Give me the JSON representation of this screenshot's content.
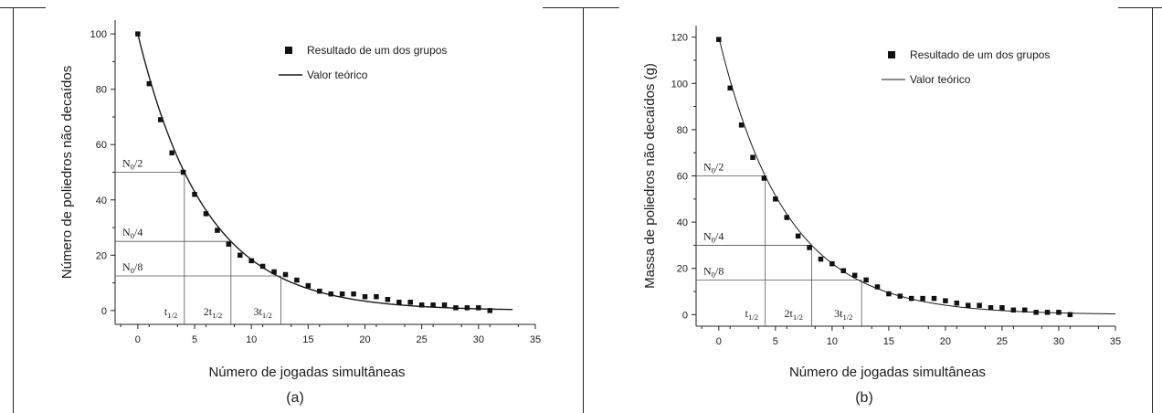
{
  "colors": {
    "ink": "#1a1a1a",
    "axis": "#222222",
    "marker": "#111111",
    "guide": "#555555"
  },
  "panels": [
    {
      "caption": "(a)"
    },
    {
      "caption": "(b)"
    }
  ],
  "chart_data": [
    {
      "type": "scatter",
      "title": "",
      "xlabel": "Número de jogadas simultâneas",
      "ylabel": "Número de poliedros não decaídos",
      "xlim": [
        -2,
        35
      ],
      "ylim": [
        -5,
        105
      ],
      "xticks": [
        "0",
        "5",
        "10",
        "15",
        "20",
        "25",
        "30",
        "35"
      ],
      "yticks": [
        "0",
        "20",
        "40",
        "60",
        "80",
        "100"
      ],
      "legend": {
        "position": "top-right",
        "scatter_label": "Resultado de um dos grupos",
        "line_label": "Valor teórico"
      },
      "series": [
        {
          "name": "Resultado de um dos grupos",
          "x": [
            0,
            1,
            2,
            3,
            4,
            5,
            6,
            7,
            8,
            9,
            10,
            11,
            12,
            13,
            14,
            15,
            16,
            17,
            18,
            19,
            20,
            21,
            22,
            23,
            24,
            25,
            26,
            27,
            28,
            29,
            30,
            31
          ],
          "y": [
            100,
            82,
            69,
            57,
            50,
            42,
            35,
            29,
            24,
            20,
            18,
            16,
            14,
            13,
            11,
            9,
            7,
            6,
            6,
            6,
            5,
            5,
            4,
            3,
            3,
            2,
            2,
            2,
            1,
            1,
            1,
            0
          ]
        },
        {
          "name": "Valor teórico",
          "curve": "exponential",
          "y0": 100,
          "half_life": 4.1,
          "x_range": [
            0,
            33
          ]
        }
      ],
      "guides": [
        {
          "label_main": "N",
          "label_sub": "0",
          "label_tail": "/2",
          "y": 50,
          "x_end": 4.1
        },
        {
          "label_main": "N",
          "label_sub": "0",
          "label_tail": "/4",
          "y": 25,
          "x_end": 8.2
        },
        {
          "label_main": "N",
          "label_sub": "0",
          "label_tail": "/8",
          "y": 12.5,
          "x_end": 12.6
        }
      ],
      "vlines": [
        {
          "label_main": "t",
          "label_sub": "1/2",
          "x": 4.1,
          "y_top": 50
        },
        {
          "label_main": "2t",
          "label_sub": "1/2",
          "x": 8.2,
          "y_top": 25
        },
        {
          "label_main": "3t",
          "label_sub": "1/2",
          "x": 12.6,
          "y_top": 12.5
        }
      ]
    },
    {
      "type": "scatter",
      "title": "",
      "xlabel": "Número de jogadas simultâneas",
      "ylabel": "Massa de poliedros não decaídos (g)",
      "xlim": [
        -2,
        35
      ],
      "ylim": [
        -5,
        125
      ],
      "xticks": [
        "0",
        "5",
        "10",
        "15",
        "20",
        "25",
        "30",
        "35"
      ],
      "yticks": [
        "0",
        "20",
        "40",
        "60",
        "80",
        "100",
        "120"
      ],
      "legend": {
        "position": "top-right",
        "scatter_label": "Resultado de um dos grupos",
        "line_label": "Valor teórico"
      },
      "series": [
        {
          "name": "Resultado de um dos grupos",
          "x": [
            0,
            1,
            2,
            3,
            4,
            5,
            6,
            7,
            8,
            9,
            10,
            11,
            12,
            13,
            14,
            15,
            16,
            17,
            18,
            19,
            20,
            21,
            22,
            23,
            24,
            25,
            26,
            27,
            28,
            29,
            30,
            31
          ],
          "y": [
            119,
            98,
            82,
            68,
            59,
            50,
            42,
            34,
            29,
            24,
            22,
            19,
            17,
            15,
            12,
            9,
            8,
            7,
            7,
            7,
            6,
            5,
            4,
            4,
            3,
            3,
            2,
            2,
            1,
            1,
            1,
            0
          ]
        },
        {
          "name": "Valor teórico",
          "curve": "exponential",
          "y0": 120,
          "half_life": 4.1,
          "x_range": [
            0,
            35
          ]
        }
      ],
      "guides": [
        {
          "label_main": "N",
          "label_sub": "0",
          "label_tail": "/2",
          "y": 60,
          "x_end": 4.1
        },
        {
          "label_main": "N",
          "label_sub": "0",
          "label_tail": "/4",
          "y": 30,
          "x_end": 8.2
        },
        {
          "label_main": "N",
          "label_sub": "0",
          "label_tail": "/8",
          "y": 15,
          "x_end": 12.6
        }
      ],
      "vlines": [
        {
          "label_main": "t",
          "label_sub": "1/2",
          "x": 4.1,
          "y_top": 60
        },
        {
          "label_main": "2t",
          "label_sub": "1/2",
          "x": 8.2,
          "y_top": 30
        },
        {
          "label_main": "3t",
          "label_sub": "1/2",
          "x": 12.6,
          "y_top": 15
        }
      ]
    }
  ]
}
